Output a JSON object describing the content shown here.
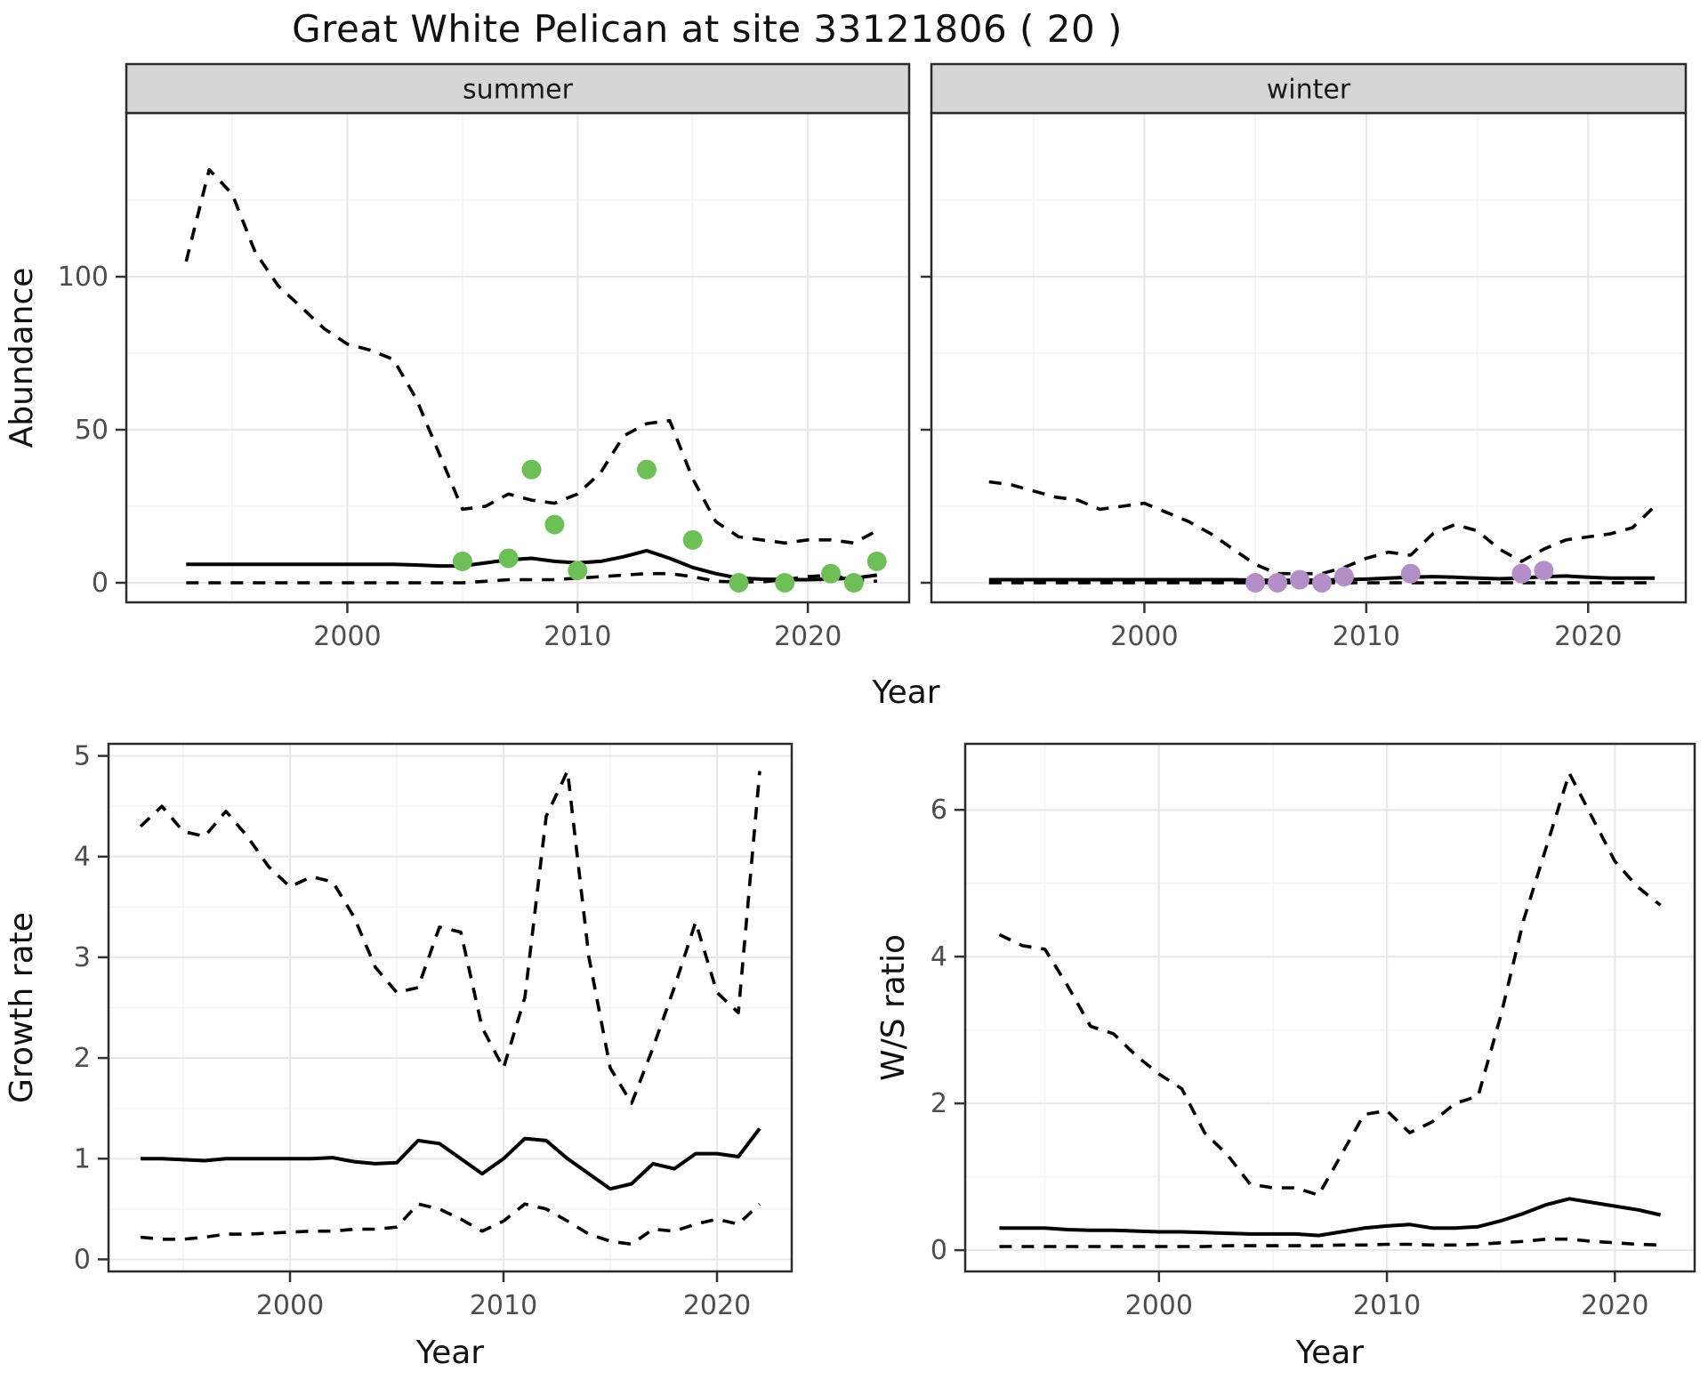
{
  "title": "Great White Pelican at site 33121806 ( 20 )",
  "shared_xlabel": "Year",
  "colors": {
    "summer_points": "#6fbf58",
    "winter_points": "#b48ec7",
    "line": "#000000",
    "tick_text": "#4d4d4d",
    "strip_bg": "#d6d6d6",
    "grid_major": "#e9e9e9",
    "grid_minor": "#f4f4f4",
    "panel_border": "#2b2b2b",
    "background": "#ffffff"
  },
  "chart_data": [
    {
      "id": "abundance-summer",
      "type": "line",
      "facet_label": "summer",
      "ylabel": "Abundance",
      "xlabel": "",
      "xlim": [
        1990.4,
        2024.4
      ],
      "ylim": [
        -6.4,
        153.5
      ],
      "x_ticks": [
        2000,
        2010,
        2020
      ],
      "x_minor": [
        1995,
        2005,
        2015
      ],
      "y_ticks": [
        0,
        50,
        100
      ],
      "y_minor": [
        25,
        75,
        125
      ],
      "grid": true,
      "legend": "none",
      "x": [
        1993,
        1994,
        1995,
        1996,
        1997,
        1998,
        1999,
        2000,
        2001,
        2002,
        2003,
        2004,
        2005,
        2006,
        2007,
        2008,
        2009,
        2010,
        2011,
        2012,
        2013,
        2014,
        2015,
        2016,
        2017,
        2018,
        2019,
        2020,
        2021,
        2022,
        2023
      ],
      "series": [
        {
          "name": "upper-ci",
          "style": "dashed",
          "values": [
            105,
            135,
            127,
            108,
            97,
            90,
            83,
            78,
            76,
            73,
            60,
            42,
            24,
            25,
            29,
            27,
            26,
            29,
            36,
            48,
            52,
            53,
            34,
            20,
            15,
            14,
            13,
            14,
            14,
            13,
            17
          ]
        },
        {
          "name": "estimate",
          "style": "solid",
          "values": [
            6,
            6,
            6,
            6,
            6,
            6,
            6,
            6,
            6,
            6,
            5.8,
            5.5,
            5.5,
            6.5,
            7.5,
            8,
            7,
            6.5,
            7,
            8.5,
            10.5,
            8,
            5,
            3,
            1.5,
            1.2,
            1,
            1,
            1.2,
            1.5,
            2.5
          ]
        },
        {
          "name": "lower-ci",
          "style": "dashed",
          "values": [
            0,
            0,
            0,
            0,
            0,
            0,
            0,
            0,
            0,
            0,
            0,
            0,
            0,
            0.5,
            1,
            1,
            1,
            1.5,
            2,
            2.5,
            3,
            3,
            2,
            0.5,
            0.3,
            0.3,
            1,
            2,
            2.5,
            1,
            0.5
          ]
        }
      ],
      "points": {
        "name": "observed-counts-summer",
        "color_key": "summer_points",
        "x": [
          2005,
          2007,
          2008,
          2009,
          2010,
          2013,
          2015,
          2017,
          2019,
          2021,
          2022,
          2023
        ],
        "y": [
          7,
          8,
          37,
          19,
          4,
          37,
          14,
          0,
          0,
          3,
          0,
          7
        ]
      }
    },
    {
      "id": "abundance-winter",
      "type": "line",
      "facet_label": "winter",
      "ylabel": "",
      "xlabel": "",
      "xlim": [
        1990.4,
        2024.4
      ],
      "ylim": [
        -6.4,
        153.5
      ],
      "x_ticks": [
        2000,
        2010,
        2020
      ],
      "x_minor": [
        1995,
        2005,
        2015
      ],
      "y_ticks": [
        0,
        50,
        100
      ],
      "y_minor": [
        25,
        75,
        125
      ],
      "y_tick_labels": false,
      "grid": true,
      "legend": "none",
      "x": [
        1993,
        1994,
        1995,
        1996,
        1997,
        1998,
        1999,
        2000,
        2001,
        2002,
        2003,
        2004,
        2005,
        2006,
        2007,
        2008,
        2009,
        2010,
        2011,
        2012,
        2013,
        2014,
        2015,
        2016,
        2017,
        2018,
        2019,
        2020,
        2021,
        2022,
        2023
      ],
      "series": [
        {
          "name": "upper-ci",
          "style": "dashed",
          "values": [
            33,
            32,
            30,
            28,
            27,
            24,
            25,
            26,
            23,
            20,
            16,
            11,
            6,
            3,
            3,
            3,
            5,
            8,
            10,
            9,
            16,
            19,
            17,
            11,
            7,
            11,
            14,
            15,
            16,
            18,
            25
          ]
        },
        {
          "name": "estimate",
          "style": "solid",
          "values": [
            1,
            1,
            1,
            1,
            1,
            1,
            1,
            1,
            1,
            1,
            1,
            1,
            0.8,
            0.8,
            0.8,
            0.9,
            1,
            1.2,
            1.5,
            1.8,
            2,
            1.8,
            1.5,
            1.3,
            1.5,
            2,
            2.2,
            1.8,
            1.5,
            1.5,
            1.5
          ]
        },
        {
          "name": "lower-ci",
          "style": "dashed",
          "values": [
            0,
            0,
            0,
            0,
            0,
            0,
            0,
            0,
            0,
            0,
            0,
            0,
            0,
            0,
            0,
            0,
            0,
            0,
            0,
            0,
            0,
            0,
            0,
            0,
            0,
            0,
            0,
            0,
            0,
            0,
            0
          ]
        }
      ],
      "points": {
        "name": "observed-counts-winter",
        "color_key": "winter_points",
        "x": [
          2005,
          2006,
          2007,
          2008,
          2009,
          2012,
          2017,
          2018
        ],
        "y": [
          0,
          0,
          1,
          0,
          2,
          3,
          3,
          4
        ]
      }
    },
    {
      "id": "growth-rate",
      "type": "line",
      "facet_label": "",
      "ylabel": "Growth rate",
      "xlabel": "Year",
      "xlim": [
        1991.5,
        2023.5
      ],
      "ylim": [
        -0.12,
        5.12
      ],
      "x_ticks": [
        2000,
        2010,
        2020
      ],
      "x_minor": [
        1995,
        2005,
        2015
      ],
      "y_ticks": [
        0,
        1,
        2,
        3,
        4,
        5
      ],
      "y_minor": [
        0.5,
        1.5,
        2.5,
        3.5,
        4.5
      ],
      "grid": true,
      "legend": "none",
      "x": [
        1993,
        1994,
        1995,
        1996,
        1997,
        1998,
        1999,
        2000,
        2001,
        2002,
        2003,
        2004,
        2005,
        2006,
        2007,
        2008,
        2009,
        2010,
        2011,
        2012,
        2013,
        2014,
        2015,
        2016,
        2017,
        2018,
        2019,
        2020,
        2021,
        2022
      ],
      "series": [
        {
          "name": "upper-ci",
          "style": "dashed",
          "values": [
            4.3,
            4.5,
            4.25,
            4.2,
            4.45,
            4.2,
            3.9,
            3.7,
            3.8,
            3.75,
            3.4,
            2.9,
            2.65,
            2.7,
            3.3,
            3.25,
            2.3,
            1.9,
            2.6,
            4.4,
            4.85,
            3.0,
            1.9,
            1.55,
            2.1,
            2.7,
            3.35,
            2.65,
            2.45,
            4.85
          ]
        },
        {
          "name": "estimate",
          "style": "solid",
          "values": [
            1,
            1,
            0.99,
            0.98,
            1,
            1,
            1,
            1,
            1,
            1.01,
            0.97,
            0.95,
            0.96,
            1.18,
            1.15,
            1,
            0.85,
            1,
            1.2,
            1.18,
            1,
            0.85,
            0.7,
            0.75,
            0.95,
            0.9,
            1.05,
            1.05,
            1.02,
            1.3
          ]
        },
        {
          "name": "lower-ci",
          "style": "dashed",
          "values": [
            0.22,
            0.2,
            0.2,
            0.22,
            0.25,
            0.25,
            0.26,
            0.27,
            0.28,
            0.28,
            0.3,
            0.3,
            0.32,
            0.55,
            0.5,
            0.4,
            0.28,
            0.38,
            0.55,
            0.5,
            0.38,
            0.25,
            0.18,
            0.15,
            0.3,
            0.28,
            0.35,
            0.4,
            0.35,
            0.55
          ]
        }
      ],
      "points": null
    },
    {
      "id": "ws-ratio",
      "type": "line",
      "facet_label": "",
      "ylabel": "W/S ratio",
      "xlabel": "Year",
      "xlim": [
        1991.5,
        2023.5
      ],
      "ylim": [
        -0.29,
        6.9
      ],
      "x_ticks": [
        2000,
        2010,
        2020
      ],
      "x_minor": [
        1995,
        2005,
        2015
      ],
      "y_ticks": [
        0,
        2,
        4,
        6
      ],
      "y_minor": [
        1,
        3,
        5
      ],
      "grid": true,
      "legend": "none",
      "x": [
        1993,
        1994,
        1995,
        1996,
        1997,
        1998,
        1999,
        2000,
        2001,
        2002,
        2003,
        2004,
        2005,
        2006,
        2007,
        2008,
        2009,
        2010,
        2011,
        2012,
        2013,
        2014,
        2015,
        2016,
        2017,
        2018,
        2019,
        2020,
        2021,
        2022
      ],
      "series": [
        {
          "name": "upper-ci",
          "style": "dashed",
          "values": [
            4.3,
            4.15,
            4.1,
            3.6,
            3.05,
            2.95,
            2.65,
            2.4,
            2.2,
            1.6,
            1.3,
            0.9,
            0.85,
            0.85,
            0.75,
            1.3,
            1.85,
            1.9,
            1.6,
            1.75,
            2.0,
            2.1,
            3.2,
            4.5,
            5.5,
            6.5,
            5.9,
            5.3,
            4.95,
            4.7
          ]
        },
        {
          "name": "estimate",
          "style": "solid",
          "values": [
            0.3,
            0.3,
            0.3,
            0.28,
            0.27,
            0.27,
            0.26,
            0.25,
            0.25,
            0.24,
            0.23,
            0.22,
            0.22,
            0.22,
            0.2,
            0.25,
            0.3,
            0.33,
            0.35,
            0.3,
            0.3,
            0.32,
            0.4,
            0.5,
            0.62,
            0.7,
            0.65,
            0.6,
            0.55,
            0.48
          ]
        },
        {
          "name": "lower-ci",
          "style": "dashed",
          "values": [
            0.05,
            0.05,
            0.05,
            0.05,
            0.05,
            0.05,
            0.05,
            0.05,
            0.05,
            0.05,
            0.06,
            0.06,
            0.06,
            0.06,
            0.06,
            0.07,
            0.07,
            0.08,
            0.08,
            0.07,
            0.07,
            0.08,
            0.1,
            0.12,
            0.15,
            0.15,
            0.12,
            0.1,
            0.08,
            0.07
          ]
        }
      ],
      "points": null
    }
  ]
}
